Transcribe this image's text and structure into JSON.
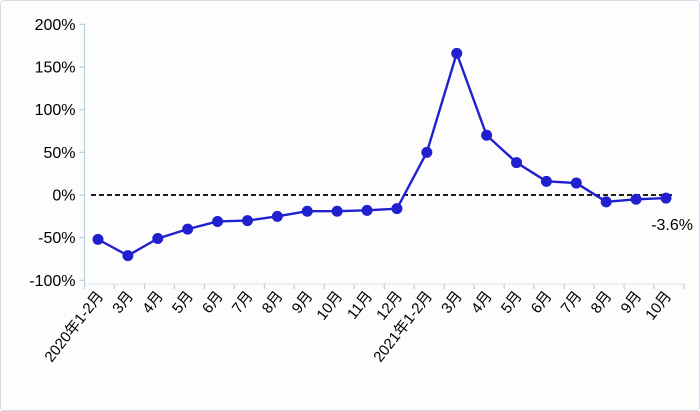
{
  "window": {
    "background": "#fdfdfe",
    "border_color": "#dadae4"
  },
  "chart_data": {
    "type": "line",
    "title": "",
    "xlabel": "",
    "ylabel": "",
    "categories": [
      "2020年1-2月",
      "3月",
      "4月",
      "5月",
      "6月",
      "7月",
      "8月",
      "9月",
      "10月",
      "11月",
      "12月",
      "2021年1-2月",
      "3月",
      "4月",
      "5月",
      "6月",
      "7月",
      "8月",
      "9月",
      "10月"
    ],
    "series": [
      {
        "values": [
          -52,
          -71,
          -51,
          -40,
          -31,
          -30,
          -25,
          -19,
          -19,
          -18,
          -16,
          50,
          166,
          70,
          38,
          16,
          14,
          -8,
          -5,
          -3.6
        ],
        "color": "#2120ce",
        "marker": "circle"
      }
    ],
    "ylim": [
      -100,
      200
    ],
    "yticks": [
      {
        "value": 200,
        "label": "200%"
      },
      {
        "value": 150,
        "label": "150%"
      },
      {
        "value": 100,
        "label": "100%"
      },
      {
        "value": 50,
        "label": "50%"
      },
      {
        "value": 0,
        "label": "0%"
      },
      {
        "value": -50,
        "label": "-50%"
      },
      {
        "value": -100,
        "label": "-100%"
      }
    ],
    "grid": false,
    "legend": "none",
    "zero_line": {
      "style": "dashed",
      "color": "#000000"
    },
    "axis_color": "#b9ced8",
    "baseline_color": "#c9ced6",
    "x_label_rotation_deg": 52,
    "annotations": [
      {
        "text": "-3.6%",
        "attached_to": "last-point"
      }
    ]
  }
}
